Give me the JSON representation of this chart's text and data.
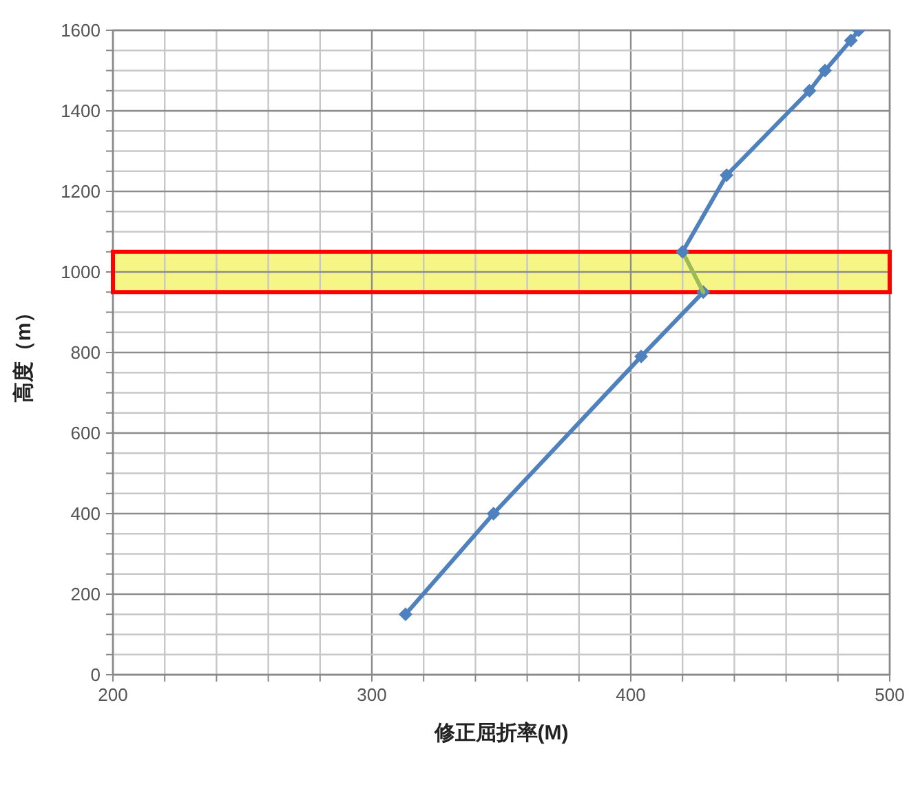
{
  "chart_data": {
    "type": "line",
    "xlabel": "修正屈折率(M)",
    "ylabel": "高度（m）",
    "series": [
      {
        "color": "#4f81bd",
        "x": [
          313,
          347,
          404,
          428
        ],
        "values": [
          150,
          400,
          790,
          950
        ]
      },
      {
        "color": "#9bbb59",
        "x": [
          428,
          420
        ],
        "values": [
          950,
          1050
        ],
        "marker": "none"
      },
      {
        "color": "#4f81bd",
        "x": [
          420,
          437,
          469,
          475,
          485,
          488
        ],
        "values": [
          1050,
          1240,
          1450,
          1500,
          1575,
          1600
        ]
      }
    ],
    "marker": "diamond",
    "line_style": "solid",
    "grid": true,
    "xlim": [
      200,
      500
    ],
    "ylim": [
      0,
      1600
    ],
    "xticks": [
      200,
      {
        "value": 220,
        "label": null
      },
      {
        "value": 240,
        "label": null
      },
      {
        "value": 260,
        "label": null
      },
      {
        "value": 280,
        "label": null
      },
      300,
      {
        "value": 320,
        "label": null
      },
      {
        "value": 340,
        "label": null
      },
      {
        "value": 360,
        "label": null
      },
      {
        "value": 380,
        "label": null
      },
      400,
      {
        "value": 420,
        "label": null
      },
      {
        "value": 440,
        "label": null
      },
      {
        "value": 460,
        "label": null
      },
      {
        "value": 480,
        "label": null
      },
      500
    ],
    "yticks": [
      0,
      {
        "value": 50,
        "label": null
      },
      {
        "value": 100,
        "label": null
      },
      {
        "value": 150,
        "label": null
      },
      200,
      {
        "value": 250,
        "label": null
      },
      {
        "value": 300,
        "label": null
      },
      {
        "value": 350,
        "label": null
      },
      400,
      {
        "value": 450,
        "label": null
      },
      {
        "value": 500,
        "label": null
      },
      {
        "value": 550,
        "label": null
      },
      600,
      {
        "value": 650,
        "label": null
      },
      {
        "value": 700,
        "label": null
      },
      {
        "value": 750,
        "label": null
      },
      800,
      {
        "value": 850,
        "label": null
      },
      {
        "value": 900,
        "label": null
      },
      {
        "value": 950,
        "label": null
      },
      1000,
      {
        "value": 1050,
        "label": null
      },
      {
        "value": 1100,
        "label": null
      },
      {
        "value": 1150,
        "label": null
      },
      1200,
      {
        "value": 1250,
        "label": null
      },
      {
        "value": 1300,
        "label": null
      },
      {
        "value": 1350,
        "label": null
      },
      1400,
      {
        "value": 1450,
        "label": null
      },
      {
        "value": 1500,
        "label": null
      },
      {
        "value": 1550,
        "label": null
      },
      1600
    ],
    "bands": [
      {
        "axis": "y",
        "from": 950,
        "to": 1050,
        "color": "#f5f57a"
      }
    ]
  }
}
